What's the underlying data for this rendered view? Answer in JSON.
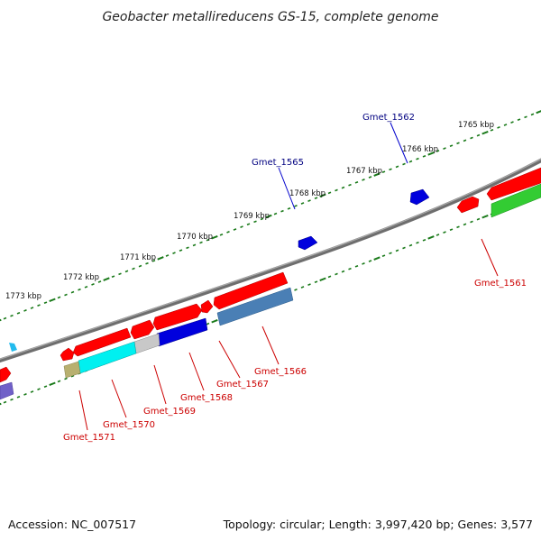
{
  "title": "Geobacter metallireducens GS-15, complete genome",
  "footer": {
    "accession": "Accession: NC_007517",
    "topology": "Topology: circular; Length: 3,997,420 bp; Genes: 3,577"
  },
  "scale_labels": [
    "1765 kbp",
    "1766 kbp",
    "1767 kbp",
    "1768 kbp",
    "1769 kbp",
    "1770 kbp",
    "1771 kbp",
    "1772 kbp",
    "1773 kbp"
  ],
  "gene_labels": {
    "outer": [
      "Gmet_1562",
      "Gmet_1565"
    ],
    "inner": [
      "Gmet_1561",
      "Gmet_1566",
      "Gmet_1567",
      "Gmet_1568",
      "Gmet_1569",
      "Gmet_1570",
      "Gmet_1571"
    ]
  },
  "colors": {
    "outer_label": "#000080",
    "inner_label": "#cc0000",
    "backbone": "#7a7a7a",
    "tick": "#1a7a1a",
    "gene_red": "#ff0000",
    "gene_blue": "#0000dd",
    "gene_green": "#33cc33",
    "gene_steelblue": "#4a7fb5",
    "gene_cyan": "#00f0f0",
    "gene_gray": "#c8c8c8",
    "gene_olive": "#b8b070",
    "gene_purple": "#7060c8",
    "gene_skyblue": "#22bbee"
  }
}
